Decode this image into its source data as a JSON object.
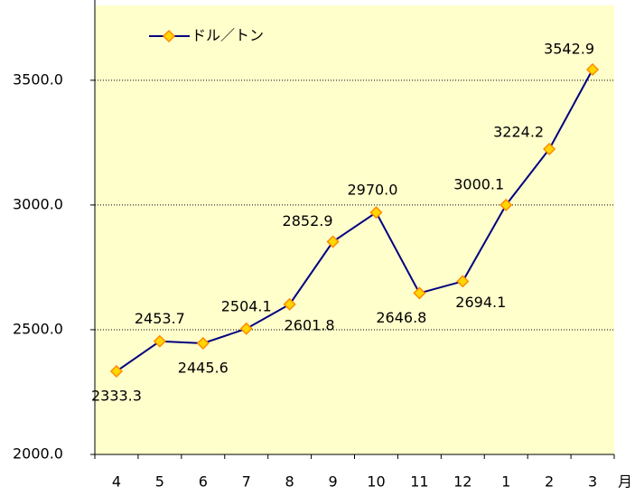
{
  "chart_data": {
    "type": "line",
    "categories": [
      "4",
      "5",
      "6",
      "7",
      "8",
      "9",
      "10",
      "11",
      "12",
      "1",
      "2",
      "3"
    ],
    "x_label": "月",
    "series": [
      {
        "name": "ドル／トン",
        "color": "#000080",
        "marker_fill": "#ffd700",
        "marker_edge": "#ff8c00",
        "values": [
          2333.3,
          2453.7,
          2445.6,
          2504.1,
          2601.8,
          2852.9,
          2970.0,
          2646.8,
          2694.1,
          3000.1,
          3224.2,
          3542.9
        ],
        "value_labels": [
          "2333.3",
          "2453.7",
          "2445.6",
          "2504.1",
          "2601.8",
          "2852.9",
          "2970.0",
          "2646.8",
          "2694.1",
          "3000.1",
          "3224.2",
          "3542.9"
        ]
      }
    ],
    "ylim": [
      2000,
      3800
    ],
    "yticks": [
      {
        "value": 2000,
        "label": "2000.0"
      },
      {
        "value": 2500,
        "label": "2500.0"
      },
      {
        "value": 3000,
        "label": "3000.0"
      },
      {
        "value": 3500,
        "label": "3500.0"
      }
    ],
    "grid": true,
    "legend": "upper left",
    "background": "#ffffcc"
  }
}
